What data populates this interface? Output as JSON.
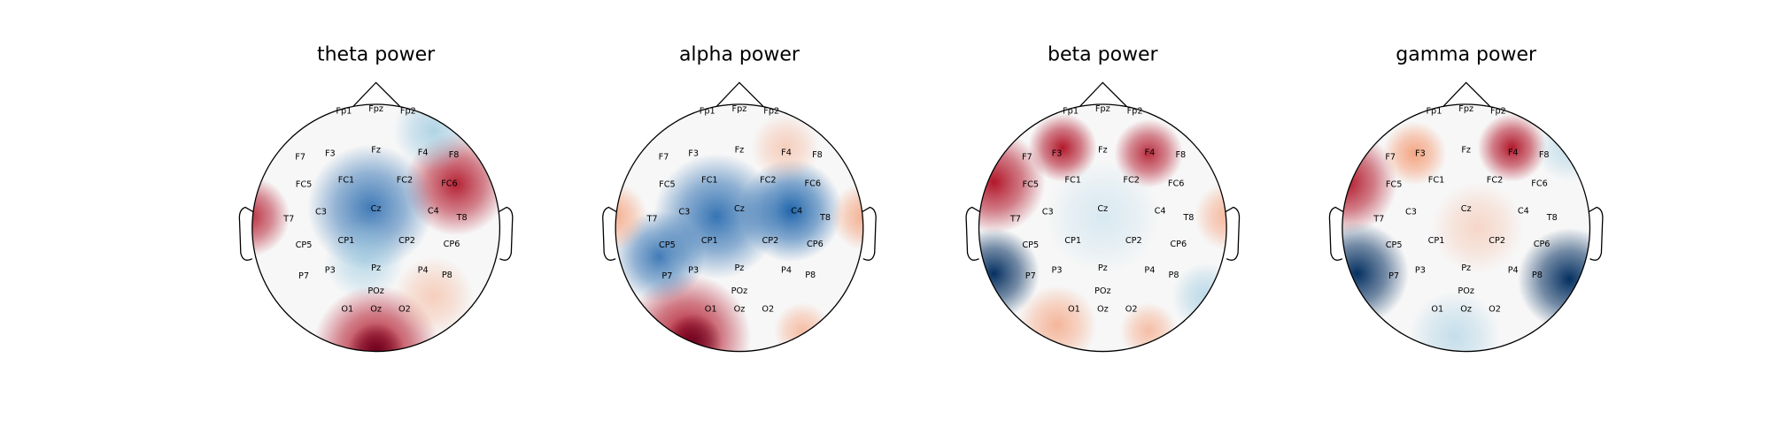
{
  "plots": [
    {
      "title": "theta power",
      "sensors": [
        "Fp1",
        "Fpz",
        "Fp2",
        "F7",
        "F3",
        "Fz",
        "F4",
        "F8",
        "FC5",
        "FC1",
        "FC2",
        "FC6",
        "T7",
        "C3",
        "Cz",
        "C4",
        "T8",
        "CP5",
        "CP1",
        "CP2",
        "CP6",
        "P7",
        "P3",
        "Pz",
        "P4",
        "P8",
        "POz",
        "O1",
        "Oz",
        "O2"
      ]
    },
    {
      "title": "alpha power",
      "sensors": [
        "Fp1",
        "Fpz",
        "Fp2",
        "F7",
        "F3",
        "Fz",
        "F4",
        "F8",
        "FC5",
        "FC1",
        "FC2",
        "FC6",
        "T7",
        "C3",
        "Cz",
        "C4",
        "T8",
        "CP5",
        "CP1",
        "CP2",
        "CP6",
        "P7",
        "P3",
        "Pz",
        "P4",
        "P8",
        "POz",
        "O1",
        "Oz",
        "O2"
      ]
    },
    {
      "title": "beta power",
      "sensors": [
        "Fp1",
        "Fpz",
        "Fp2",
        "F7",
        "F3",
        "Fz",
        "F4",
        "F8",
        "FC5",
        "FC1",
        "FC2",
        "FC6",
        "T7",
        "C3",
        "Cz",
        "C4",
        "T8",
        "CP5",
        "CP1",
        "CP2",
        "CP6",
        "P7",
        "P3",
        "Pz",
        "P4",
        "P8",
        "POz",
        "O1",
        "Oz",
        "O2"
      ]
    },
    {
      "title": "gamma power",
      "sensors": [
        "Fp1",
        "Fpz",
        "Fp2",
        "F7",
        "F3",
        "Fz",
        "F4",
        "F8",
        "FC5",
        "FC1",
        "FC2",
        "FC6",
        "T7",
        "C3",
        "Cz",
        "C4",
        "T8",
        "CP5",
        "CP1",
        "CP2",
        "CP6",
        "P7",
        "P3",
        "Pz",
        "P4",
        "P8",
        "POz",
        "O1",
        "Oz",
        "O2"
      ]
    }
  ]
}
